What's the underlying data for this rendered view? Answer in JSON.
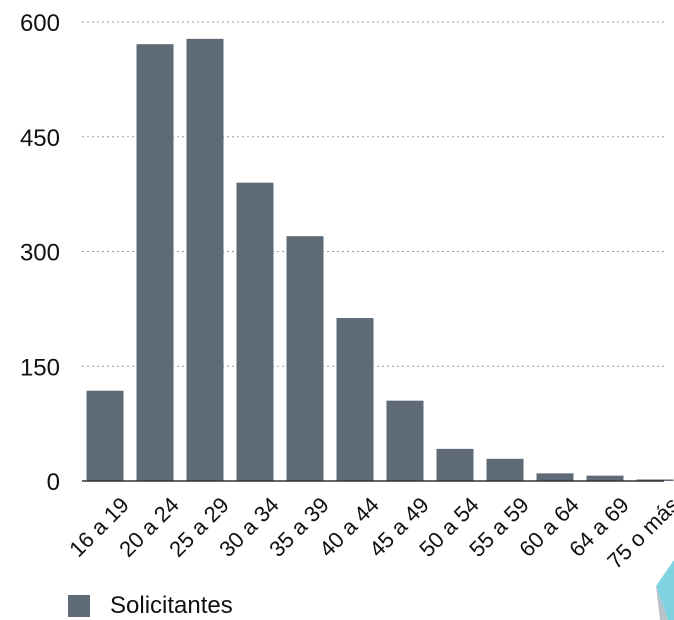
{
  "chart_data": {
    "type": "bar",
    "categories": [
      "16 a 19",
      "20 a 24",
      "25 a 29",
      "30 a 34",
      "35 a 39",
      "40 a 44",
      "45 a 49",
      "50 a 54",
      "55 a 59",
      "60 a 64",
      "64 a 69",
      "75 o más"
    ],
    "series": [
      {
        "name": "Solicitantes",
        "values": [
          118,
          571,
          578,
          390,
          320,
          213,
          105,
          42,
          29,
          10,
          7,
          2
        ]
      }
    ],
    "title": "",
    "xlabel": "",
    "ylabel": "",
    "ylim": [
      0,
      600
    ],
    "yticks": [
      0,
      150,
      300,
      450,
      600
    ],
    "grid": true,
    "legend": "bottom-left",
    "bar_color": "#5e6b76"
  }
}
